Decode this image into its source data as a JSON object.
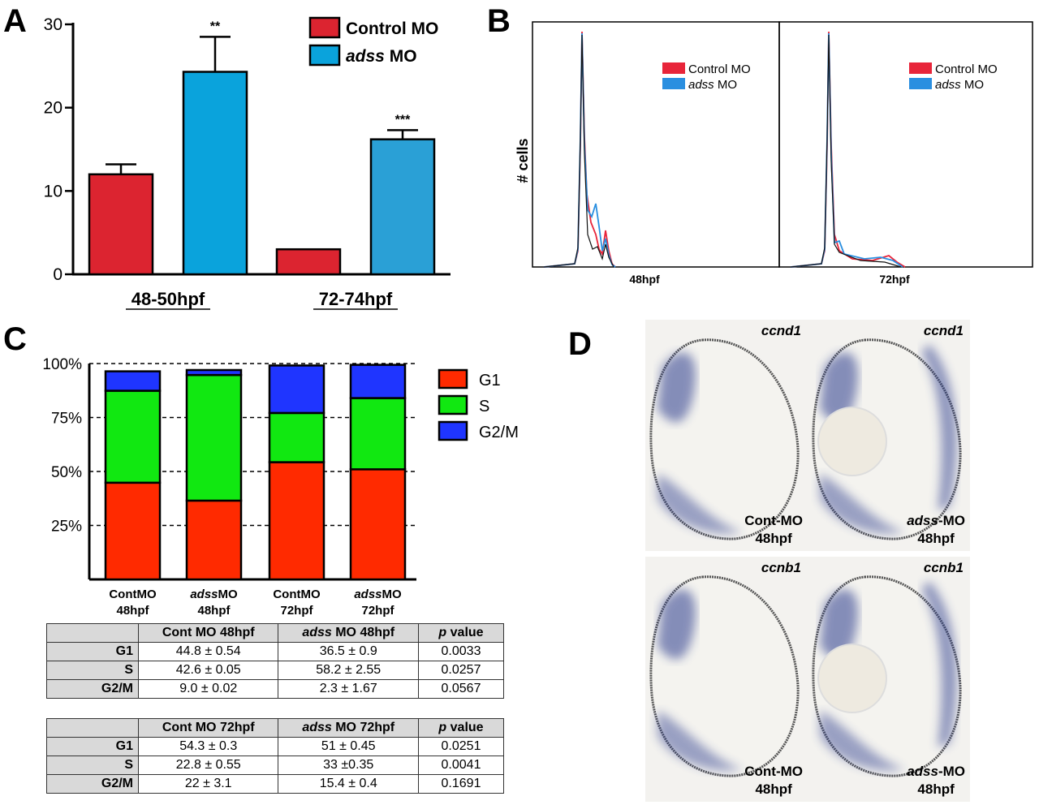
{
  "panels": {
    "a": "A",
    "b": "B",
    "c": "C",
    "d": "D"
  },
  "colors": {
    "control_red": "#dc2430",
    "adss_blue": "#0aa3dc",
    "adss_blue2": "#2aa0d6",
    "hist_red": "#e8253a",
    "hist_blue": "#2a8fe0",
    "g1": "#ff2a00",
    "s": "#11e811",
    "g2m": "#1f35ff",
    "stain": "#2a3a8c"
  },
  "panel_a": {
    "chart_data": {
      "type": "bar",
      "categories": [
        "48-50hpf",
        "72-74hpf"
      ],
      "series": [
        {
          "name": "Control MO",
          "values": [
            12,
            3
          ],
          "errors": [
            1.2,
            0
          ]
        },
        {
          "name": "adss MO",
          "values": [
            24.3,
            16.2
          ],
          "errors": [
            4.2,
            1.1
          ]
        }
      ],
      "significance": [
        "**",
        "***"
      ],
      "ylim": [
        0,
        30
      ],
      "yticks": [
        "0",
        "10",
        "20",
        "30"
      ],
      "legend": {
        "items": [
          {
            "prefix": "Control MO",
            "italic": "",
            "suffix": ""
          },
          {
            "prefix": "",
            "italic": "adss",
            "suffix": " MO"
          }
        ]
      }
    }
  },
  "panel_b": {
    "ylabel": "# cells",
    "histograms": [
      {
        "xlabel": "48hpf",
        "legend_control": "Control MO",
        "legend_adss_italic": "adss",
        "legend_adss_suffix": " MO"
      },
      {
        "xlabel": "72hpf",
        "legend_control": "Control MO",
        "legend_adss_italic": "adss",
        "legend_adss_suffix": " MO"
      }
    ]
  },
  "panel_c": {
    "chart_data": {
      "type": "bar",
      "stacked": true,
      "categories": [
        {
          "italic": "",
          "line1": "ContMO",
          "line2": "48hpf"
        },
        {
          "italic": "adss",
          "line1": "MO",
          "line2": "48hpf"
        },
        {
          "italic": "",
          "line1": "ContMO",
          "line2": "72hpf"
        },
        {
          "italic": "adss",
          "line1": "MO",
          "line2": "72hpf"
        }
      ],
      "series": [
        {
          "name": "G1",
          "values": [
            44.8,
            36.5,
            54.3,
            51
          ]
        },
        {
          "name": "S",
          "values": [
            42.6,
            58.2,
            22.8,
            33
          ]
        },
        {
          "name": "G2/M",
          "values": [
            9.0,
            2.3,
            22,
            15.4
          ]
        }
      ],
      "ylim": [
        0,
        100
      ],
      "yticks": [
        "25%",
        "50%",
        "75%",
        "100%"
      ]
    },
    "tables": [
      {
        "headers": [
          {
            "italic": "",
            "text": "Cont MO 48hpf"
          },
          {
            "italic": "adss",
            "text": " MO 48hpf"
          },
          {
            "italic": "p",
            "text": " value"
          }
        ],
        "rows": [
          {
            "label": "G1",
            "cells": [
              "44.8 ± 0.54",
              "36.5 ± 0.9",
              "0.0033"
            ]
          },
          {
            "label": "S",
            "cells": [
              "42.6 ± 0.05",
              "58.2 ± 2.55",
              "0.0257"
            ]
          },
          {
            "label": "G2/M",
            "cells": [
              "9.0 ± 0.02",
              "2.3 ± 1.67",
              "0.0567"
            ]
          }
        ]
      },
      {
        "headers": [
          {
            "italic": "",
            "text": "Cont MO 72hpf"
          },
          {
            "italic": "adss",
            "text": " MO 72hpf"
          },
          {
            "italic": "p",
            "text": " value"
          }
        ],
        "rows": [
          {
            "label": "G1",
            "cells": [
              "54.3 ± 0.3",
              "51 ± 0.45",
              "0.0251"
            ]
          },
          {
            "label": "S",
            "cells": [
              "22.8 ± 0.55",
              "33 ±0.35",
              "0.0041"
            ]
          },
          {
            "label": "G2/M",
            "cells": [
              "22 ± 3.1",
              "15.4 ± 0.4",
              "0.1691"
            ]
          }
        ]
      }
    ]
  },
  "panel_d": {
    "images": [
      {
        "gene": "ccnd1",
        "italic": "",
        "line1": "Cont-MO",
        "line2": "48hpf"
      },
      {
        "gene": "ccnd1",
        "italic": "adss",
        "line1": "-MO",
        "line2": "48hpf"
      },
      {
        "gene": "ccnb1",
        "italic": "",
        "line1": "Cont-MO",
        "line2": "48hpf"
      },
      {
        "gene": "ccnb1",
        "italic": "adss",
        "line1": "-MO",
        "line2": "48hpf"
      }
    ]
  }
}
